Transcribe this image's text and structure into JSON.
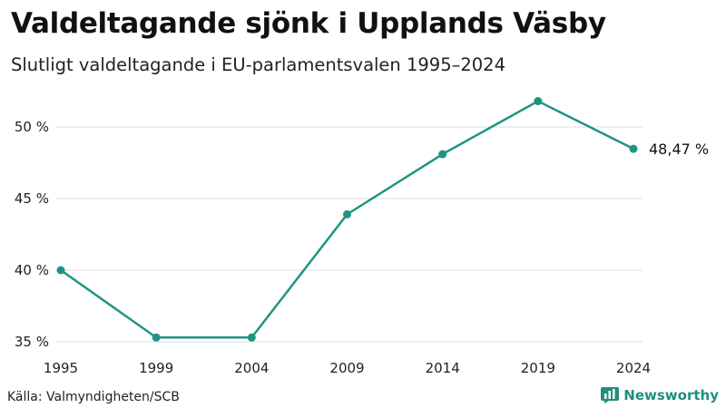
{
  "header": {
    "title": "Valdeltagande sjönk i Upplands Väsby",
    "subtitle": "Slutligt valdeltagande i EU-parlamentsvalen 1995–2024"
  },
  "footer": {
    "source": "Källa: Valmyndigheten/SCB",
    "brand": "Newsworthy"
  },
  "colors": {
    "line": "#1f9483",
    "grid": "#dddddd",
    "brand": "#1f8f7d"
  },
  "chart_data": {
    "type": "line",
    "title": "Valdeltagande sjönk i Upplands Väsby",
    "subtitle": "Slutligt valdeltagande i EU-parlamentsvalen 1995–2024",
    "xlabel": "",
    "ylabel": "",
    "x": [
      1995,
      1999,
      2004,
      2009,
      2014,
      2019,
      2024
    ],
    "series": [
      {
        "name": "Valdeltagande",
        "values": [
          40.0,
          35.3,
          35.3,
          43.9,
          48.1,
          51.8,
          48.47
        ]
      }
    ],
    "ylim": [
      35,
      52
    ],
    "yticks": [
      35,
      40,
      45,
      50
    ],
    "ytick_labels": [
      "35 %",
      "40 %",
      "45 %",
      "50 %"
    ],
    "xtick_labels": [
      "1995",
      "1999",
      "2004",
      "2009",
      "2014",
      "2019",
      "2024"
    ],
    "end_label": "48,47 %",
    "grid": true
  }
}
